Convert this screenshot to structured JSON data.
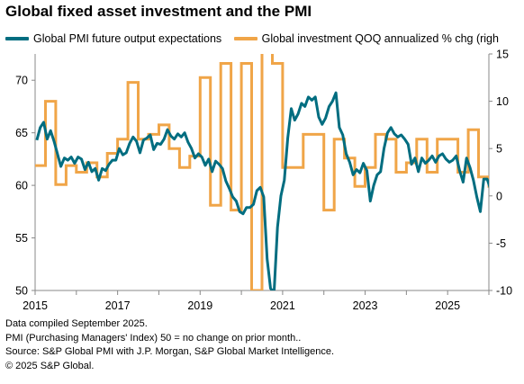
{
  "chart_data": {
    "type": "line",
    "title": "Global fixed asset investment and the PMI",
    "x_tick_labels": [
      "2015",
      "2017",
      "2019",
      "2021",
      "2023",
      "2025"
    ],
    "xlim": [
      "2015-01",
      "2025-12"
    ],
    "y_left": {
      "ticks": [
        50,
        55,
        60,
        65,
        70
      ],
      "ylim": [
        50,
        72.5
      ]
    },
    "y_right": {
      "ticks": [
        -10,
        -5,
        0,
        5,
        10,
        15
      ],
      "ylim": [
        -10,
        15
      ]
    },
    "series": [
      {
        "name": "Global PMI future output expectations",
        "axis": "left",
        "color": "#006d80",
        "start": "2015-01",
        "frequency": "monthly",
        "values": [
          64.3,
          65.5,
          66.0,
          64.4,
          65.2,
          64.2,
          63.0,
          61.8,
          62.6,
          62.4,
          62.7,
          62.1,
          62.7,
          62.5,
          61.5,
          62.2,
          61.3,
          61.6,
          60.5,
          61.6,
          61.4,
          62.0,
          62.4,
          62.4,
          63.5,
          62.9,
          63.1,
          64.0,
          64.6,
          64.2,
          63.1,
          64.3,
          64.5,
          64.8,
          63.4,
          64.0,
          63.9,
          64.4,
          65.3,
          64.7,
          64.4,
          64.9,
          64.6,
          65.0,
          64.1,
          63.5,
          62.6,
          63.0,
          62.7,
          61.9,
          62.5,
          61.3,
          62.3,
          62.0,
          61.6,
          60.4,
          59.7,
          58.9,
          58.5,
          57.5,
          57.3,
          57.9,
          57.9,
          58.2,
          59.5,
          59.8,
          58.9,
          53.0,
          50.2,
          49.8,
          56.0,
          59.0,
          60.5,
          64.5,
          67.3,
          66.2,
          66.8,
          67.8,
          67.5,
          68.4,
          68.1,
          68.4,
          66.5,
          65.8,
          66.4,
          67.5,
          68.0,
          68.8,
          65.5,
          64.8,
          63.0,
          62.2,
          61.0,
          61.5,
          61.2,
          62.1,
          61.4,
          58.5,
          60.0,
          61.0,
          61.3,
          63.5,
          65.0,
          65.5,
          64.9,
          64.6,
          64.8,
          64.4,
          63.9,
          62.0,
          62.6,
          61.3,
          62.6,
          62.1,
          62.4,
          62.8,
          62.2,
          62.8,
          63.0,
          62.5,
          62.2,
          62.4,
          62.8,
          61.4,
          60.3,
          62.6,
          61.7,
          60.5,
          58.9,
          57.5,
          60.6,
          60.6,
          59.6,
          59.5
        ]
      },
      {
        "name": "Global investment QOQ annualized % chg (righ",
        "axis": "right",
        "color": "#f0a548",
        "start": "2015-01",
        "frequency": "quarterly",
        "values": [
          3.2,
          10.0,
          1.2,
          3.2,
          2.5,
          3.5,
          2.0,
          4.5,
          6.0,
          12.0,
          6.0,
          6.5,
          7.5,
          5.0,
          3.0,
          4.2,
          12.5,
          -1.0,
          14.0,
          -1.5,
          14.0,
          -10.0,
          16.0,
          14.0,
          3.0,
          3.0,
          6.5,
          6.5,
          -1.5,
          6.0,
          4.0,
          1.0,
          3.0,
          6.5,
          6.0,
          2.5,
          3.5,
          6.0,
          2.5,
          6.0,
          6.0,
          2.5,
          7.0,
          2.0,
          1.0
        ]
      }
    ],
    "notes": [
      "Data compiled September 2025.",
      "PMI (Purchasing Managers' Index) 50 = no change on prior month..",
      "Source: S&P Global PMI with J.P. Morgan, S&P Global Market Intelligence.",
      "© 2025 S&P Global."
    ]
  }
}
